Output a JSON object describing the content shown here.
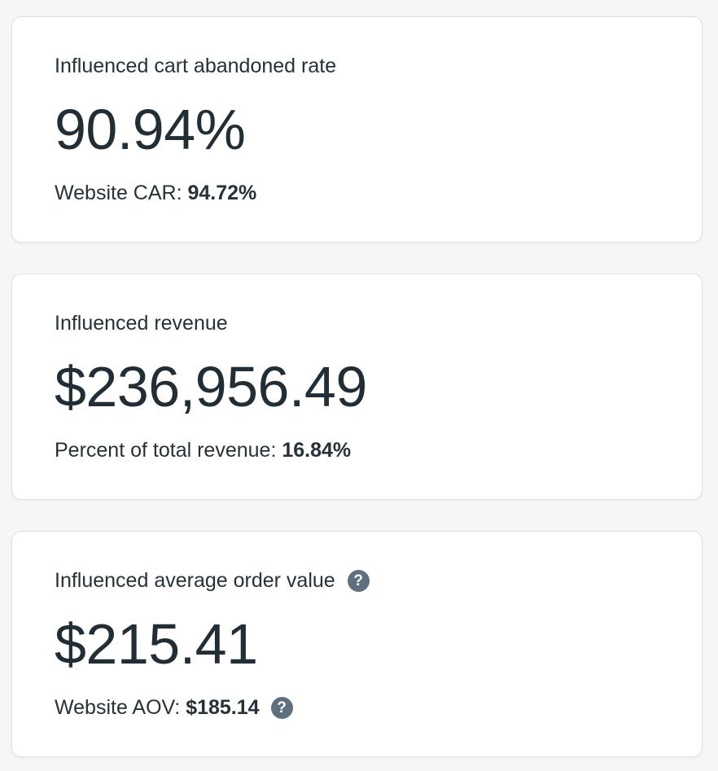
{
  "theme": {
    "page_background": "#f6f6f7",
    "card_background": "#ffffff",
    "card_border": "#e0e0e2",
    "text_color": "#263238",
    "help_icon_background": "#5e7080",
    "help_icon_glyph_color": "#ffffff"
  },
  "icons": {
    "help_glyph": "?"
  },
  "cards": [
    {
      "title": "Influenced cart abandoned rate",
      "value": "90.94%",
      "sub_label": "Website CAR: ",
      "sub_value": "94.72%"
    },
    {
      "title": "Influenced revenue",
      "value": "$236,956.49",
      "sub_label": "Percent of total revenue: ",
      "sub_value": "16.84%"
    },
    {
      "title": "Influenced average order value",
      "value": "$215.41",
      "sub_label": "Website AOV: ",
      "sub_value": "$185.14"
    }
  ]
}
